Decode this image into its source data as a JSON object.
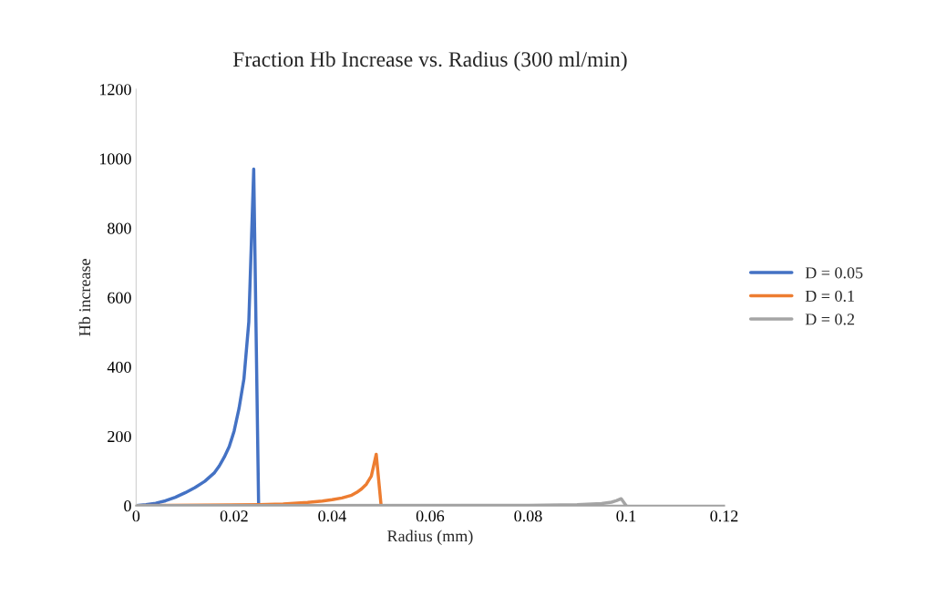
{
  "chart_data": {
    "type": "line",
    "title": "Fraction Hb Increase vs. Radius (300 ml/min)",
    "xlabel": "Radius (mm)",
    "ylabel": "Hb increase",
    "xlim": [
      0,
      0.12
    ],
    "xticks": [
      {
        "value": 0,
        "label": "0"
      },
      {
        "value": 0.02,
        "label": "0.02"
      },
      {
        "value": 0.04,
        "label": "0.04"
      },
      {
        "value": 0.06,
        "label": "0.06"
      },
      {
        "value": 0.08,
        "label": "0.08"
      },
      {
        "value": 0.1,
        "label": "0.1"
      },
      {
        "value": 0.12,
        "label": "0.12"
      }
    ],
    "ylim": [
      0,
      1200
    ],
    "yticks": [
      0,
      200,
      400,
      600,
      800,
      1000,
      1200
    ],
    "grid": false,
    "legend": "right",
    "marker": "none",
    "line_style": "solid",
    "series": [
      {
        "name": "D = 0.05",
        "color": "#4472c4",
        "x": [
          0,
          0.002,
          0.004,
          0.006,
          0.008,
          0.01,
          0.012,
          0.014,
          0.016,
          0.017,
          0.018,
          0.019,
          0.02,
          0.021,
          0.022,
          0.023,
          0.024,
          0.025
        ],
        "values": [
          0,
          3,
          7,
          14,
          24,
          37,
          52,
          70,
          95,
          115,
          140,
          170,
          215,
          280,
          365,
          530,
          970,
          0
        ]
      },
      {
        "name": "D = 0.1",
        "color": "#ed7d31",
        "x": [
          0,
          0.025,
          0.03,
          0.035,
          0.038,
          0.04,
          0.042,
          0.044,
          0.045,
          0.046,
          0.047,
          0.048,
          0.049,
          0.05
        ],
        "values": [
          0,
          3,
          5,
          9,
          13,
          17,
          22,
          30,
          38,
          48,
          62,
          85,
          148,
          0
        ]
      },
      {
        "name": "D = 0.2",
        "color": "#a5a5a5",
        "x": [
          0,
          0.08,
          0.09,
          0.095,
          0.097,
          0.098,
          0.099,
          0.1
        ],
        "values": [
          0,
          1,
          3,
          6,
          10,
          14,
          20,
          0
        ]
      }
    ]
  }
}
